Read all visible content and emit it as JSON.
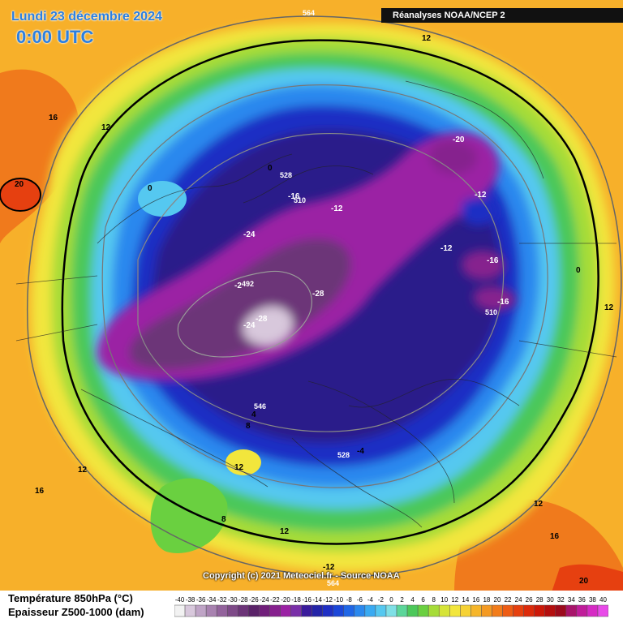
{
  "header": {
    "date": "Lundi 23 décembre 2024",
    "time": "0:00 UTC",
    "source": "Réanalyses NOAA/NCEP 2"
  },
  "footer": {
    "copyright": "Copyright (c) 2021 Meteociel.fr - Source NOAA",
    "legend_line1": "Température 850hPa (°C)",
    "legend_line2": "Epaisseur Z500-1000 (dam)"
  },
  "colorbar": {
    "values": [
      -40,
      -38,
      -36,
      -34,
      -32,
      -30,
      -28,
      -26,
      -24,
      -22,
      -20,
      -18,
      -16,
      -14,
      -12,
      -10,
      -8,
      -6,
      -4,
      -2,
      0,
      2,
      4,
      6,
      8,
      10,
      12,
      14,
      16,
      18,
      20,
      22,
      24,
      26,
      28,
      30,
      32,
      34,
      36,
      38,
      40
    ],
    "colors": [
      "#f2f2f2",
      "#d8c8dc",
      "#bfa4c6",
      "#a882b0",
      "#93639c",
      "#7e4a88",
      "#6c3478",
      "#5a2268",
      "#701e7a",
      "#86208e",
      "#9b22a4",
      "#7a2fa8",
      "#3a1b9c",
      "#2424a8",
      "#1f2fc4",
      "#1b46d8",
      "#1f66e6",
      "#2a88ee",
      "#39aaf2",
      "#55c8f0",
      "#7fe0e6",
      "#5cd69a",
      "#4cc85a",
      "#6ad040",
      "#a6dc38",
      "#d6e438",
      "#f2e63c",
      "#f6d234",
      "#f6b62a",
      "#f49a22",
      "#f27c1a",
      "#ee5c14",
      "#e6400e",
      "#dc2a0a",
      "#cc1808",
      "#b40e0e",
      "#9c0a1c",
      "#a8146a",
      "#c01c9a",
      "#d62ac4",
      "#e84ae8"
    ]
  },
  "map_labels": [
    {
      "text": "16",
      "kind": "temp"
    },
    {
      "text": "12",
      "kind": "temp"
    },
    {
      "text": "20",
      "kind": "temp"
    },
    {
      "text": "0",
      "kind": "temp"
    },
    {
      "text": "0",
      "kind": "temp"
    },
    {
      "text": "-16",
      "kind": "temp"
    },
    {
      "text": "-12",
      "kind": "temp"
    },
    {
      "text": "-24",
      "kind": "temp"
    },
    {
      "text": "-20",
      "kind": "temp"
    },
    {
      "text": "-12",
      "kind": "temp"
    },
    {
      "text": "-12",
      "kind": "temp"
    },
    {
      "text": "-16",
      "kind": "temp"
    },
    {
      "text": "-16",
      "kind": "temp"
    },
    {
      "text": "-28",
      "kind": "temp"
    },
    {
      "text": "-24",
      "kind": "temp"
    },
    {
      "text": "-28",
      "kind": "temp"
    },
    {
      "text": "-2",
      "kind": "temp"
    },
    {
      "text": "0",
      "kind": "temp"
    },
    {
      "text": "12",
      "kind": "temp"
    },
    {
      "text": "8",
      "kind": "temp"
    },
    {
      "text": "4",
      "kind": "temp"
    },
    {
      "text": "12",
      "kind": "temp"
    },
    {
      "text": "12",
      "kind": "temp"
    },
    {
      "text": "16",
      "kind": "temp"
    },
    {
      "text": "8",
      "kind": "temp"
    },
    {
      "text": "-4",
      "kind": "temp"
    },
    {
      "text": "12",
      "kind": "temp"
    },
    {
      "text": "12",
      "kind": "temp"
    },
    {
      "text": "16",
      "kind": "temp"
    },
    {
      "text": "20",
      "kind": "temp"
    },
    {
      "text": "-12",
      "kind": "temp"
    },
    {
      "text": "12",
      "kind": "temp"
    },
    {
      "text": "564",
      "kind": "thickness"
    },
    {
      "text": "528",
      "kind": "thickness"
    },
    {
      "text": "510",
      "kind": "thickness"
    },
    {
      "text": "492",
      "kind": "thickness"
    },
    {
      "text": "510",
      "kind": "thickness"
    },
    {
      "text": "546",
      "kind": "thickness"
    },
    {
      "text": "528",
      "kind": "thickness"
    },
    {
      "text": "564",
      "kind": "thickness"
    }
  ]
}
